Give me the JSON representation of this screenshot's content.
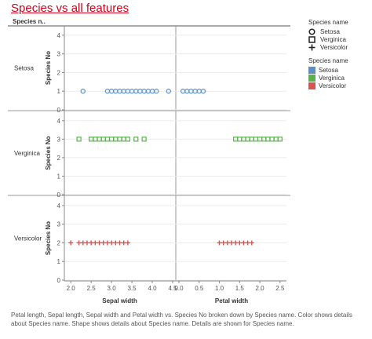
{
  "title": "Species vs all features",
  "row_header": "Species n..",
  "caption": "Petal length, Sepal length, Sepal width and Petal width vs. Species No broken down by Species name. Color shows details about Species name.  Shape shows details about Species name.  Details are shown for Species name.",
  "legend": {
    "shape_title": "Species name",
    "shape_items": [
      {
        "label": "Setosa",
        "shape": "circle-icon"
      },
      {
        "label": "Verginica",
        "shape": "square-icon"
      },
      {
        "label": "Versicolor",
        "shape": "plus-icon"
      }
    ],
    "color_title": "Species name",
    "color_items": [
      {
        "label": "Setosa",
        "color": "#5b8fc7"
      },
      {
        "label": "Verginica",
        "color": "#59b34a"
      },
      {
        "label": "Versicolor",
        "color": "#d9534f"
      }
    ]
  },
  "chart_data": {
    "type": "scatter",
    "y_axis_label": "Species No",
    "y_ticks": [
      "0",
      "1",
      "2",
      "3",
      "4"
    ],
    "ylim": [
      0,
      4.5
    ],
    "rows": [
      {
        "name": "Setosa",
        "species_no": 1,
        "color": "#5b8fc7",
        "shape": "circle"
      },
      {
        "name": "Verginica",
        "species_no": 3,
        "color": "#59b34a",
        "shape": "square"
      },
      {
        "name": "Versicolor",
        "species_no": 2,
        "color": "#d9534f",
        "shape": "plus"
      }
    ],
    "columns": [
      {
        "xlabel": "Sepal width",
        "xlim": [
          1.9,
          4.5
        ],
        "x_ticks": [
          "2.0",
          "2.5",
          "3.0",
          "3.5",
          "4.0",
          "4.5"
        ],
        "x_tick_values": [
          2.0,
          2.5,
          3.0,
          3.5,
          4.0,
          4.5
        ],
        "points": {
          "Setosa": [
            2.3,
            2.9,
            3.0,
            3.1,
            3.2,
            3.3,
            3.4,
            3.5,
            3.6,
            3.7,
            3.8,
            3.9,
            4.0,
            4.1,
            4.4
          ],
          "Verginica": [
            2.2,
            2.5,
            2.6,
            2.7,
            2.8,
            2.9,
            3.0,
            3.1,
            3.2,
            3.3,
            3.4,
            3.6,
            3.8
          ],
          "Versicolor": [
            2.0,
            2.2,
            2.3,
            2.4,
            2.5,
            2.6,
            2.7,
            2.8,
            2.9,
            3.0,
            3.1,
            3.2,
            3.3,
            3.4
          ]
        }
      },
      {
        "xlabel": "Petal width",
        "xlim": [
          0.0,
          2.6
        ],
        "x_ticks": [
          "0.0",
          "0.5",
          "1.0",
          "1.5",
          "2.0",
          "2.5"
        ],
        "x_tick_values": [
          0.0,
          0.5,
          1.0,
          1.5,
          2.0,
          2.5
        ],
        "points": {
          "Setosa": [
            0.1,
            0.2,
            0.3,
            0.4,
            0.5,
            0.6
          ],
          "Verginica": [
            1.4,
            1.5,
            1.6,
            1.7,
            1.8,
            1.9,
            2.0,
            2.1,
            2.2,
            2.3,
            2.4,
            2.5
          ],
          "Versicolor": [
            1.0,
            1.1,
            1.2,
            1.3,
            1.4,
            1.5,
            1.6,
            1.7,
            1.8
          ]
        }
      }
    ]
  }
}
